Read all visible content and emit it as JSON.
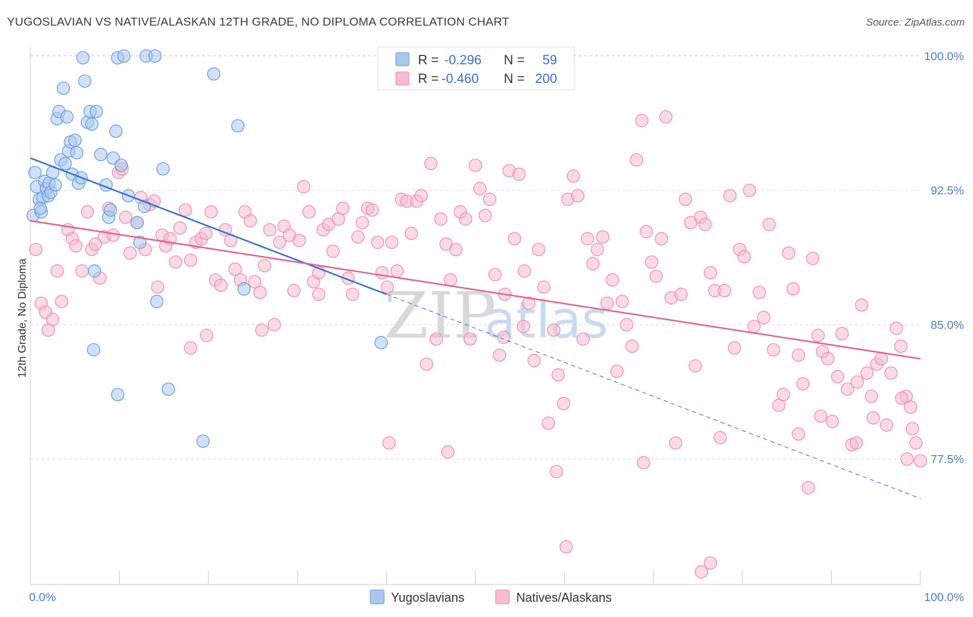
{
  "title": "YUGOSLAVIAN VS NATIVE/ALASKAN 12TH GRADE, NO DIPLOMA CORRELATION CHART",
  "source": "Source: ZipAtlas.com",
  "watermark": {
    "part1": "ZIP",
    "part2": "atlas"
  },
  "colors": {
    "blue_fill": "#a9c7ef",
    "blue_stroke": "#6d9ee0",
    "blue_line": "#3370d0",
    "pink_fill": "#f6bccf",
    "pink_stroke": "#ee8fb0",
    "pink_line": "#e0628f",
    "grid": "#dddddd",
    "tick_text": "#4a7bc8"
  },
  "legend": {
    "rows": [
      {
        "r_label": "R =",
        "r_value": "-0.296",
        "n_label": "N =",
        "n_value": "59"
      },
      {
        "r_label": "R =",
        "r_value": "-0.460",
        "n_label": "N =",
        "n_value": "200"
      }
    ]
  },
  "bottom_legend": {
    "series1": "Yugoslavians",
    "series2": "Natives/Alaskans"
  },
  "chart_data": {
    "type": "scatter",
    "xlabel": "",
    "ylabel": "12th Grade, No Diploma",
    "xlim": [
      0,
      100
    ],
    "ylim": [
      70.5,
      100.5
    ],
    "x_tick_labels": [
      "0.0%",
      "100.0%"
    ],
    "y_ticks": [
      77.5,
      85.0,
      92.5,
      100.0
    ],
    "y_tick_labels": [
      "77.5%",
      "85.0%",
      "92.5%",
      "100.0%"
    ],
    "grid": "horizontal dashed",
    "series": [
      {
        "name": "Yugoslavians",
        "r": -0.296,
        "n": 59,
        "trend": {
          "x0": 0,
          "y0": 94.3,
          "x1": 40,
          "y1": 86.7,
          "dash_to_x": 100,
          "dash_to_y": 75.3
        },
        "points": [
          [
            0.3,
            91.1
          ],
          [
            0.5,
            93.5
          ],
          [
            0.7,
            92.7
          ],
          [
            1.0,
            92.0
          ],
          [
            1.2,
            91.3
          ],
          [
            1.4,
            92.1
          ],
          [
            1.6,
            93.0
          ],
          [
            1.8,
            92.6
          ],
          [
            2.0,
            92.2
          ],
          [
            2.1,
            92.9
          ],
          [
            2.3,
            92.4
          ],
          [
            2.5,
            93.5
          ],
          [
            2.8,
            92.8
          ],
          [
            3.0,
            96.5
          ],
          [
            3.2,
            96.9
          ],
          [
            3.4,
            94.2
          ],
          [
            3.7,
            98.2
          ],
          [
            3.9,
            94.0
          ],
          [
            4.1,
            96.6
          ],
          [
            4.3,
            94.7
          ],
          [
            4.5,
            95.2
          ],
          [
            4.7,
            93.4
          ],
          [
            5.0,
            95.3
          ],
          [
            5.2,
            94.6
          ],
          [
            5.4,
            92.9
          ],
          [
            5.7,
            93.2
          ],
          [
            5.9,
            99.9
          ],
          [
            6.1,
            98.6
          ],
          [
            6.4,
            96.3
          ],
          [
            6.7,
            96.9
          ],
          [
            6.9,
            96.2
          ],
          [
            7.2,
            88.0
          ],
          [
            7.4,
            96.9
          ],
          [
            7.9,
            94.5
          ],
          [
            8.5,
            92.8
          ],
          [
            8.8,
            91.0
          ],
          [
            9.0,
            91.4
          ],
          [
            9.3,
            94.3
          ],
          [
            9.6,
            95.8
          ],
          [
            9.8,
            99.9
          ],
          [
            10.2,
            93.9
          ],
          [
            10.5,
            100.0
          ],
          [
            11.0,
            92.2
          ],
          [
            12.0,
            90.7
          ],
          [
            12.3,
            89.6
          ],
          [
            12.8,
            91.6
          ],
          [
            13.0,
            100.0
          ],
          [
            14.0,
            100.0
          ],
          [
            14.2,
            86.3
          ],
          [
            14.9,
            93.7
          ],
          [
            15.5,
            81.4
          ],
          [
            19.4,
            78.5
          ],
          [
            20.6,
            99.0
          ],
          [
            23.3,
            96.1
          ],
          [
            24.0,
            87.0
          ],
          [
            7.1,
            83.6
          ],
          [
            9.8,
            81.1
          ],
          [
            39.4,
            84.0
          ],
          [
            1.1,
            91.5
          ]
        ]
      },
      {
        "name": "Natives/Alaskans",
        "r": -0.46,
        "n": 200,
        "trend": {
          "x0": 0,
          "y0": 90.8,
          "x1": 100,
          "y1": 83.1
        },
        "points": [
          [
            0.6,
            89.2
          ],
          [
            1.2,
            86.2
          ],
          [
            1.7,
            85.7
          ],
          [
            2.0,
            84.7
          ],
          [
            2.5,
            85.3
          ],
          [
            3.0,
            88.0
          ],
          [
            3.5,
            86.3
          ],
          [
            4.2,
            90.3
          ],
          [
            4.7,
            89.8
          ],
          [
            5.1,
            89.4
          ],
          [
            5.8,
            88.0
          ],
          [
            6.4,
            91.3
          ],
          [
            6.9,
            89.2
          ],
          [
            7.3,
            89.5
          ],
          [
            7.8,
            87.6
          ],
          [
            8.3,
            89.9
          ],
          [
            8.8,
            91.5
          ],
          [
            9.3,
            90.0
          ],
          [
            9.9,
            93.5
          ],
          [
            10.3,
            93.7
          ],
          [
            10.7,
            91.0
          ],
          [
            11.2,
            89.0
          ],
          [
            12.0,
            90.7
          ],
          [
            12.4,
            92.1
          ],
          [
            12.9,
            89.2
          ],
          [
            13.4,
            91.7
          ],
          [
            13.9,
            91.9
          ],
          [
            14.3,
            87.1
          ],
          [
            14.8,
            90.0
          ],
          [
            15.2,
            89.4
          ],
          [
            15.7,
            89.8
          ],
          [
            16.3,
            88.5
          ],
          [
            16.8,
            90.4
          ],
          [
            17.4,
            91.4
          ],
          [
            18.0,
            88.6
          ],
          [
            18.6,
            89.6
          ],
          [
            19.2,
            89.8
          ],
          [
            19.7,
            90.1
          ],
          [
            20.3,
            91.3
          ],
          [
            20.8,
            87.5
          ],
          [
            21.4,
            87.2
          ],
          [
            21.9,
            90.3
          ],
          [
            22.5,
            89.7
          ],
          [
            23.0,
            88.1
          ],
          [
            23.6,
            87.5
          ],
          [
            24.1,
            91.3
          ],
          [
            24.7,
            90.8
          ],
          [
            25.2,
            87.4
          ],
          [
            25.8,
            86.8
          ],
          [
            26.3,
            88.3
          ],
          [
            26.9,
            90.3
          ],
          [
            27.4,
            85.0
          ],
          [
            28.0,
            89.6
          ],
          [
            28.5,
            90.5
          ],
          [
            29.1,
            90.0
          ],
          [
            29.6,
            86.9
          ],
          [
            30.2,
            89.7
          ],
          [
            30.7,
            92.7
          ],
          [
            31.3,
            91.3
          ],
          [
            31.8,
            87.4
          ],
          [
            32.4,
            86.7
          ],
          [
            32.9,
            90.3
          ],
          [
            33.5,
            90.6
          ],
          [
            34.0,
            89.1
          ],
          [
            34.6,
            90.9
          ],
          [
            35.1,
            91.5
          ],
          [
            35.7,
            87.6
          ],
          [
            36.2,
            86.7
          ],
          [
            36.8,
            89.9
          ],
          [
            37.3,
            90.7
          ],
          [
            37.9,
            91.5
          ],
          [
            38.4,
            91.4
          ],
          [
            39.0,
            89.6
          ],
          [
            39.5,
            87.9
          ],
          [
            40.1,
            87.1
          ],
          [
            40.6,
            89.6
          ],
          [
            41.2,
            88.0
          ],
          [
            41.7,
            92.0
          ],
          [
            42.3,
            91.9
          ],
          [
            42.8,
            90.1
          ],
          [
            43.4,
            91.9
          ],
          [
            43.9,
            92.2
          ],
          [
            44.5,
            82.8
          ],
          [
            45.0,
            94.0
          ],
          [
            45.6,
            84.2
          ],
          [
            46.1,
            90.9
          ],
          [
            46.7,
            89.5
          ],
          [
            47.2,
            87.5
          ],
          [
            47.8,
            89.2
          ],
          [
            48.3,
            91.3
          ],
          [
            48.9,
            90.9
          ],
          [
            49.4,
            84.2
          ],
          [
            50.0,
            93.9
          ],
          [
            50.5,
            92.6
          ],
          [
            51.1,
            91.1
          ],
          [
            51.6,
            92.0
          ],
          [
            52.2,
            87.8
          ],
          [
            52.7,
            83.3
          ],
          [
            53.3,
            86.7
          ],
          [
            53.8,
            93.6
          ],
          [
            54.4,
            89.8
          ],
          [
            54.9,
            93.4
          ],
          [
            55.5,
            88.0
          ],
          [
            56.0,
            86.2
          ],
          [
            56.6,
            83.0
          ],
          [
            57.1,
            89.2
          ],
          [
            57.7,
            87.1
          ],
          [
            58.2,
            79.5
          ],
          [
            58.8,
            84.7
          ],
          [
            59.3,
            82.2
          ],
          [
            59.9,
            80.6
          ],
          [
            60.4,
            92.0
          ],
          [
            61.0,
            93.3
          ],
          [
            61.5,
            92.2
          ],
          [
            62.1,
            84.2
          ],
          [
            62.6,
            89.8
          ],
          [
            63.2,
            88.4
          ],
          [
            63.7,
            89.2
          ],
          [
            64.3,
            89.9
          ],
          [
            64.8,
            86.2
          ],
          [
            65.4,
            87.5
          ],
          [
            65.9,
            82.4
          ],
          [
            66.5,
            86.3
          ],
          [
            67.0,
            85.0
          ],
          [
            67.6,
            83.8
          ],
          [
            68.1,
            94.2
          ],
          [
            68.7,
            96.4
          ],
          [
            69.2,
            90.2
          ],
          [
            69.8,
            88.5
          ],
          [
            70.3,
            87.7
          ],
          [
            70.9,
            89.8
          ],
          [
            71.4,
            96.6
          ],
          [
            72.0,
            86.5
          ],
          [
            72.5,
            78.4
          ],
          [
            73.1,
            86.7
          ],
          [
            73.6,
            92.0
          ],
          [
            74.2,
            90.7
          ],
          [
            74.7,
            82.7
          ],
          [
            75.3,
            91.0
          ],
          [
            75.8,
            90.6
          ],
          [
            76.4,
            87.9
          ],
          [
            76.9,
            86.9
          ],
          [
            77.5,
            78.7
          ],
          [
            78.0,
            86.9
          ],
          [
            78.6,
            92.2
          ],
          [
            79.1,
            83.7
          ],
          [
            79.7,
            89.2
          ],
          [
            80.2,
            88.8
          ],
          [
            80.8,
            92.5
          ],
          [
            81.3,
            84.9
          ],
          [
            81.9,
            86.8
          ],
          [
            82.4,
            85.4
          ],
          [
            83.0,
            90.6
          ],
          [
            83.5,
            83.6
          ],
          [
            84.1,
            80.5
          ],
          [
            84.6,
            81.1
          ],
          [
            85.2,
            89.0
          ],
          [
            85.7,
            87.0
          ],
          [
            86.3,
            83.3
          ],
          [
            86.8,
            81.7
          ],
          [
            87.4,
            75.9
          ],
          [
            87.9,
            88.7
          ],
          [
            88.5,
            84.4
          ],
          [
            89.0,
            83.5
          ],
          [
            89.6,
            83.1
          ],
          [
            90.1,
            79.6
          ],
          [
            90.7,
            82.1
          ],
          [
            91.2,
            84.5
          ],
          [
            91.8,
            81.4
          ],
          [
            92.3,
            78.3
          ],
          [
            92.9,
            81.8
          ],
          [
            93.4,
            86.1
          ],
          [
            94.0,
            82.3
          ],
          [
            94.5,
            81.0
          ],
          [
            95.1,
            82.8
          ],
          [
            95.6,
            83.1
          ],
          [
            96.2,
            79.4
          ],
          [
            96.7,
            82.3
          ],
          [
            97.3,
            84.8
          ],
          [
            97.8,
            83.8
          ],
          [
            98.4,
            81.0
          ],
          [
            98.9,
            80.4
          ],
          [
            99.5,
            78.4
          ],
          [
            100.0,
            77.4
          ],
          [
            60.2,
            72.6
          ],
          [
            76.4,
            71.7
          ],
          [
            75.4,
            71.2
          ],
          [
            26.0,
            84.7
          ],
          [
            19.8,
            84.4
          ],
          [
            18.0,
            83.7
          ],
          [
            59.1,
            76.8
          ],
          [
            46.9,
            77.9
          ],
          [
            40.3,
            78.4
          ],
          [
            68.9,
            77.3
          ],
          [
            99.1,
            79.2
          ],
          [
            98.5,
            77.5
          ],
          [
            97.9,
            80.9
          ],
          [
            86.3,
            78.9
          ],
          [
            92.8,
            78.4
          ],
          [
            94.7,
            79.8
          ],
          [
            88.8,
            79.9
          ],
          [
            53.2,
            84.3
          ],
          [
            55.4,
            84.9
          ],
          [
            32.4,
            87.9
          ]
        ]
      }
    ]
  }
}
